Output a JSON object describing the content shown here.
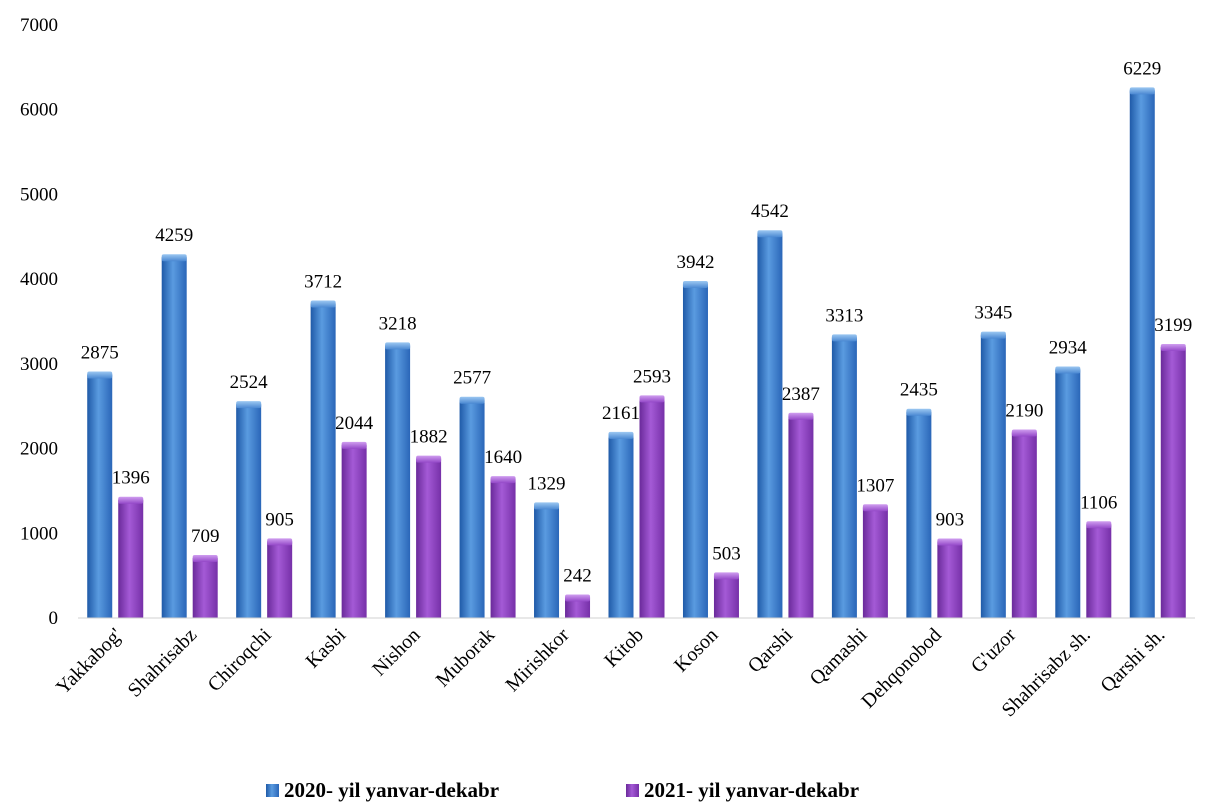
{
  "chart_data": {
    "type": "bar",
    "title": "",
    "xlabel": "",
    "ylabel": "",
    "ylim": [
      0,
      7000
    ],
    "yticks": [
      0,
      1000,
      2000,
      3000,
      4000,
      5000,
      6000,
      7000
    ],
    "grid": false,
    "legend_position": "bottom",
    "categories": [
      "Yakkabog'",
      "Shahrisabz",
      "Chiroqchi",
      "Kasbi",
      "Nishon",
      "Muborak",
      "Mirishkor",
      "Kitob",
      "Koson",
      "Qarshi",
      "Qamashi",
      "Dehqonobod",
      "G'uzor",
      "Shahrisabz sh.",
      "Qarshi sh."
    ],
    "series": [
      {
        "name": "2020- yil yanvar-dekabr",
        "color": "#3f7fcf",
        "values": [
          2875,
          4259,
          2524,
          3712,
          3218,
          2577,
          1329,
          2161,
          3942,
          4542,
          3313,
          2435,
          3345,
          2934,
          6229
        ]
      },
      {
        "name": "2021- yil yanvar-dekabr",
        "color": "#8a3fc0",
        "values": [
          1396,
          709,
          905,
          2044,
          1882,
          1640,
          242,
          2593,
          503,
          2387,
          1307,
          903,
          2190,
          1106,
          3199
        ]
      }
    ]
  }
}
